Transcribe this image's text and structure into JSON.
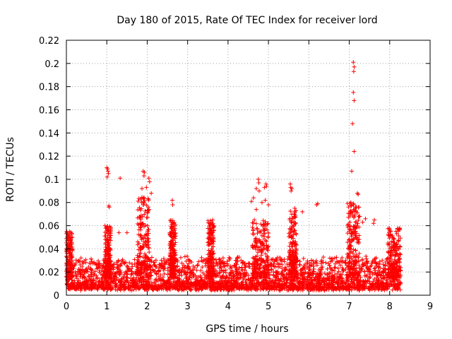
{
  "chart_data": {
    "type": "scatter",
    "title": "Day 180 of 2015, Rate Of TEC Index for receiver lord",
    "xlabel": "GPS time / hours",
    "ylabel": "ROTI / TECUs",
    "xlim": [
      0,
      9
    ],
    "ylim": [
      0,
      0.22
    ],
    "xticks": [
      "0",
      "1",
      "2",
      "3",
      "4",
      "5",
      "6",
      "7",
      "8",
      "9"
    ],
    "yticks": [
      "0",
      "0.02",
      "0.04",
      "0.06",
      "0.08",
      "0.1",
      "0.12",
      "0.14",
      "0.16",
      "0.18",
      "0.2",
      "0.22"
    ],
    "grid": true,
    "marker": "+",
    "color": "#ff0000",
    "series": [
      {
        "name": "ROTI",
        "base_band": [
          0.004,
          0.03
        ],
        "x_range": [
          0,
          8.28
        ],
        "activity_windows": [
          {
            "x": [
              0.0,
              0.15
            ],
            "peak": 0.055
          },
          {
            "x": [
              0.95,
              1.1
            ],
            "peak": 0.06
          },
          {
            "x": [
              1.75,
              2.05
            ],
            "peak": 0.085
          },
          {
            "x": [
              2.55,
              2.7
            ],
            "peak": 0.065
          },
          {
            "x": [
              3.5,
              3.65
            ],
            "peak": 0.065
          },
          {
            "x": [
              4.6,
              5.0
            ],
            "peak": 0.065
          },
          {
            "x": [
              5.5,
              5.7
            ],
            "peak": 0.075
          },
          {
            "x": [
              6.95,
              7.25
            ],
            "peak": 0.08
          },
          {
            "x": [
              7.95,
              8.28
            ],
            "peak": 0.058
          }
        ],
        "points": [
          [
            1.0,
            0.11
          ],
          [
            1.02,
            0.109
          ],
          [
            1.03,
            0.107
          ],
          [
            1.04,
            0.105
          ],
          [
            1.01,
            0.102
          ],
          [
            1.06,
            0.076
          ],
          [
            1.05,
            0.077
          ],
          [
            1.33,
            0.101
          ],
          [
            1.3,
            0.054
          ],
          [
            1.5,
            0.054
          ],
          [
            1.9,
            0.107
          ],
          [
            1.93,
            0.106
          ],
          [
            1.92,
            0.103
          ],
          [
            2.04,
            0.101
          ],
          [
            2.06,
            0.098
          ],
          [
            1.87,
            0.092
          ],
          [
            1.98,
            0.093
          ],
          [
            2.1,
            0.088
          ],
          [
            1.86,
            0.08
          ],
          [
            1.9,
            0.078
          ],
          [
            2.62,
            0.082
          ],
          [
            2.63,
            0.078
          ],
          [
            4.7,
            0.092
          ],
          [
            4.75,
            0.1
          ],
          [
            4.76,
            0.097
          ],
          [
            4.77,
            0.09
          ],
          [
            4.58,
            0.081
          ],
          [
            4.63,
            0.084
          ],
          [
            4.84,
            0.08
          ],
          [
            4.7,
            0.074
          ],
          [
            4.9,
            0.093
          ],
          [
            4.94,
            0.096
          ],
          [
            4.95,
            0.094
          ],
          [
            4.92,
            0.082
          ],
          [
            5.0,
            0.078
          ],
          [
            5.54,
            0.096
          ],
          [
            5.55,
            0.093
          ],
          [
            5.58,
            0.092
          ],
          [
            5.56,
            0.09
          ],
          [
            5.65,
            0.075
          ],
          [
            5.68,
            0.073
          ],
          [
            5.84,
            0.072
          ],
          [
            6.22,
            0.079
          ],
          [
            6.19,
            0.078
          ],
          [
            7.1,
            0.201
          ],
          [
            7.12,
            0.197
          ],
          [
            7.11,
            0.193
          ],
          [
            7.1,
            0.175
          ],
          [
            7.12,
            0.168
          ],
          [
            7.08,
            0.148
          ],
          [
            7.12,
            0.124
          ],
          [
            7.06,
            0.107
          ],
          [
            7.2,
            0.088
          ],
          [
            7.22,
            0.087
          ],
          [
            7.04,
            0.08
          ],
          [
            7.1,
            0.078
          ],
          [
            7.18,
            0.076
          ],
          [
            7.16,
            0.073
          ],
          [
            7.2,
            0.071
          ],
          [
            7.26,
            0.068
          ],
          [
            7.4,
            0.066
          ],
          [
            7.33,
            0.063
          ],
          [
            7.62,
            0.065
          ],
          [
            7.6,
            0.062
          ]
        ]
      }
    ]
  }
}
